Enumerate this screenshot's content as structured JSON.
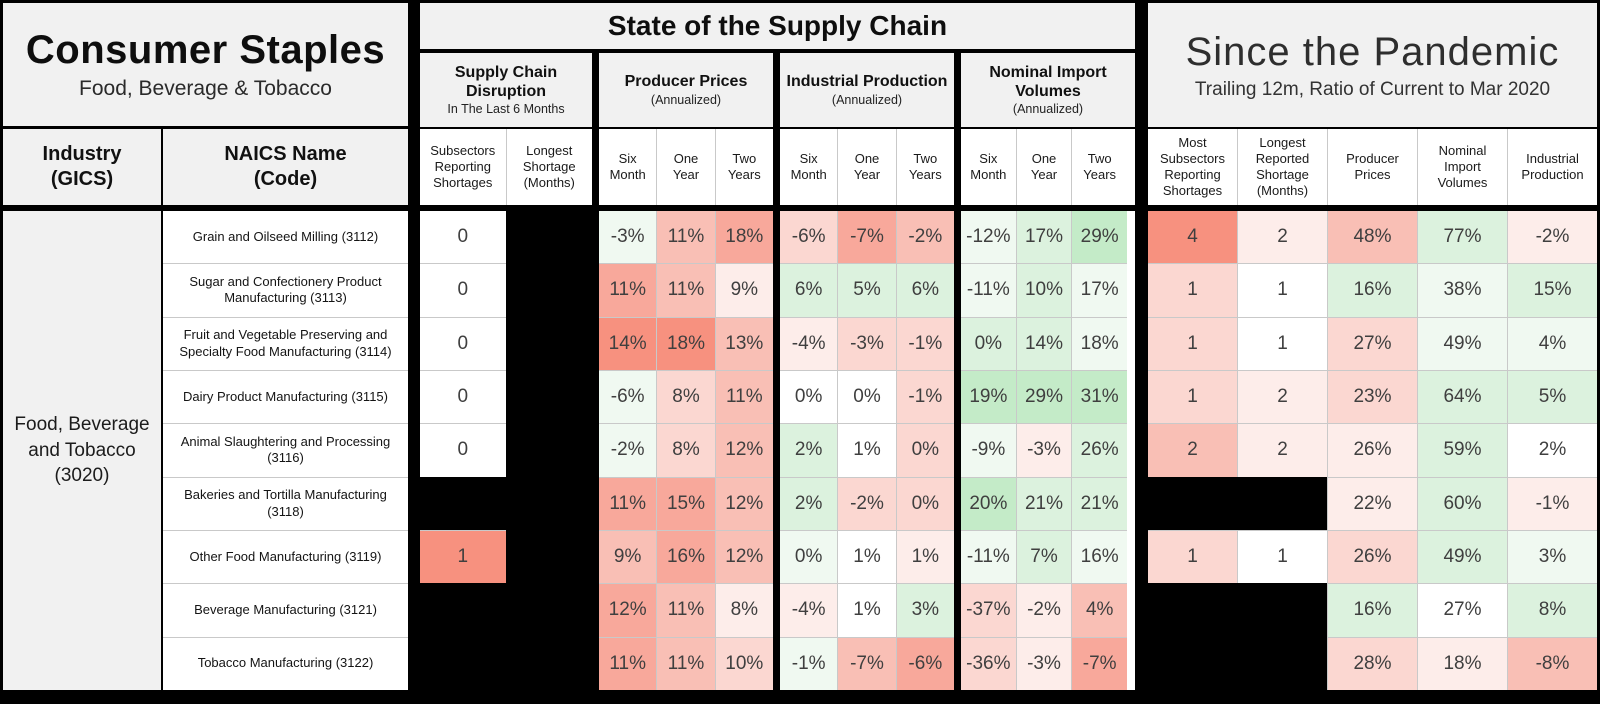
{
  "left": {
    "title": "Consumer Staples",
    "subtitle": "Food, Beverage & Tobacco",
    "industry_header": {
      "line1": "Industry",
      "line2": "(GICS)"
    },
    "naics_header": {
      "line1": "NAICS Name",
      "line2": "(Code)"
    }
  },
  "middle": {
    "banner": "State of the Supply Chain",
    "groups": [
      {
        "title": "Supply Chain Disruption",
        "subtitle": "In The Last 6 Months",
        "cols": [
          "Subsectors Reporting Shortages",
          "Longest Shortage (Months)"
        ]
      },
      {
        "title": "Producer Prices",
        "subtitle": "(Annualized)",
        "cols": [
          "Six Month",
          "One Year",
          "Two Years"
        ]
      },
      {
        "title": "Industrial Production",
        "subtitle": "(Annualized)",
        "cols": [
          "Six Month",
          "One Year",
          "Two Years"
        ]
      },
      {
        "title": "Nominal Import Volumes",
        "subtitle": "(Annualized)",
        "cols": [
          "Six Month",
          "One Year",
          "Two Years"
        ]
      }
    ]
  },
  "right": {
    "title": "Since the Pandemic",
    "subtitle": "Trailing 12m, Ratio of Current to Mar 2020",
    "cols": [
      "Most Subsectors Reporting Shortages",
      "Longest Reported Shortage (Months)",
      "Producer Prices",
      "Nominal Import Volumes",
      "Industrial Production"
    ]
  },
  "palette": {
    "R4": "#f7917f",
    "R3": "#f8a89b",
    "R2": "#f9bfb5",
    "R1": "#fbd7d1",
    "R0": "#fdedea",
    "W": "#ffffff",
    "G0": "#f0f9f1",
    "G1": "#dcf2de",
    "G2": "#c4ebc8"
  },
  "chart_data": {
    "type": "table",
    "title": "State of the Supply Chain / Since the Pandemic — Consumer Staples (Food, Beverage & Tobacco)",
    "row_group": "Food, Beverage and Tobacco (3020)",
    "column_groups": [
      "Supply Chain Disruption (last 6 months)",
      "Producer Prices (annualized: 6m/1y/2y)",
      "Industrial Production (annualized: 6m/1y/2y)",
      "Nominal Import Volumes (annualized: 6m/1y/2y)",
      "Since the Pandemic (most subsectors reporting shortages, longest reported shortage months, producer prices, nominal import volumes, industrial production)"
    ],
    "rows": [
      {
        "name": "Grain and Oilseed Milling (3112)",
        "srs": {
          "v": "0",
          "c": "W"
        },
        "ls": null,
        "pp": [
          {
            "v": "-3%",
            "c": "G0"
          },
          {
            "v": "11%",
            "c": "R2"
          },
          {
            "v": "18%",
            "c": "R3"
          }
        ],
        "ip": [
          {
            "v": "-6%",
            "c": "R1"
          },
          {
            "v": "-7%",
            "c": "R3"
          },
          {
            "v": "-2%",
            "c": "R2"
          }
        ],
        "niv": [
          {
            "v": "-12%",
            "c": "G0"
          },
          {
            "v": "17%",
            "c": "G1"
          },
          {
            "v": "29%",
            "c": "G2"
          }
        ],
        "pand": [
          {
            "v": "4",
            "c": "R4"
          },
          {
            "v": "2",
            "c": "R0"
          },
          {
            "v": "48%",
            "c": "R2"
          },
          {
            "v": "77%",
            "c": "G1"
          },
          {
            "v": "-2%",
            "c": "R0"
          }
        ]
      },
      {
        "name": "Sugar and Confectionery Product Manufacturing (3113)",
        "srs": {
          "v": "0",
          "c": "W"
        },
        "ls": null,
        "pp": [
          {
            "v": "11%",
            "c": "R3"
          },
          {
            "v": "11%",
            "c": "R2"
          },
          {
            "v": "9%",
            "c": "R0"
          }
        ],
        "ip": [
          {
            "v": "6%",
            "c": "G1"
          },
          {
            "v": "5%",
            "c": "G1"
          },
          {
            "v": "6%",
            "c": "G1"
          }
        ],
        "niv": [
          {
            "v": "-11%",
            "c": "G0"
          },
          {
            "v": "10%",
            "c": "G1"
          },
          {
            "v": "17%",
            "c": "G0"
          }
        ],
        "pand": [
          {
            "v": "1",
            "c": "R1"
          },
          {
            "v": "1",
            "c": "W"
          },
          {
            "v": "16%",
            "c": "G1"
          },
          {
            "v": "38%",
            "c": "G0"
          },
          {
            "v": "15%",
            "c": "G1"
          }
        ]
      },
      {
        "name": "Fruit and Vegetable Preserving and Specialty Food Manufacturing (3114)",
        "srs": {
          "v": "0",
          "c": "W"
        },
        "ls": null,
        "pp": [
          {
            "v": "14%",
            "c": "R4"
          },
          {
            "v": "18%",
            "c": "R4"
          },
          {
            "v": "13%",
            "c": "R2"
          }
        ],
        "ip": [
          {
            "v": "-4%",
            "c": "R0"
          },
          {
            "v": "-3%",
            "c": "R1"
          },
          {
            "v": "-1%",
            "c": "R1"
          }
        ],
        "niv": [
          {
            "v": "0%",
            "c": "G1"
          },
          {
            "v": "14%",
            "c": "G1"
          },
          {
            "v": "18%",
            "c": "G0"
          }
        ],
        "pand": [
          {
            "v": "1",
            "c": "R1"
          },
          {
            "v": "1",
            "c": "W"
          },
          {
            "v": "27%",
            "c": "R1"
          },
          {
            "v": "49%",
            "c": "G0"
          },
          {
            "v": "4%",
            "c": "G0"
          }
        ]
      },
      {
        "name": "Dairy Product Manufacturing (3115)",
        "srs": {
          "v": "0",
          "c": "W"
        },
        "ls": null,
        "pp": [
          {
            "v": "-6%",
            "c": "G0"
          },
          {
            "v": "8%",
            "c": "R1"
          },
          {
            "v": "11%",
            "c": "R2"
          }
        ],
        "ip": [
          {
            "v": "0%",
            "c": "W"
          },
          {
            "v": "0%",
            "c": "W"
          },
          {
            "v": "-1%",
            "c": "R1"
          }
        ],
        "niv": [
          {
            "v": "19%",
            "c": "G2"
          },
          {
            "v": "29%",
            "c": "G2"
          },
          {
            "v": "31%",
            "c": "G2"
          }
        ],
        "pand": [
          {
            "v": "1",
            "c": "R1"
          },
          {
            "v": "2",
            "c": "R0"
          },
          {
            "v": "23%",
            "c": "R1"
          },
          {
            "v": "64%",
            "c": "G1"
          },
          {
            "v": "5%",
            "c": "G1"
          }
        ]
      },
      {
        "name": "Animal Slaughtering and Processing (3116)",
        "srs": {
          "v": "0",
          "c": "W"
        },
        "ls": null,
        "pp": [
          {
            "v": "-2%",
            "c": "G0"
          },
          {
            "v": "8%",
            "c": "R1"
          },
          {
            "v": "12%",
            "c": "R2"
          }
        ],
        "ip": [
          {
            "v": "2%",
            "c": "G1"
          },
          {
            "v": "1%",
            "c": "W"
          },
          {
            "v": "0%",
            "c": "R1"
          }
        ],
        "niv": [
          {
            "v": "-9%",
            "c": "G0"
          },
          {
            "v": "-3%",
            "c": "R0"
          },
          {
            "v": "26%",
            "c": "G1"
          }
        ],
        "pand": [
          {
            "v": "2",
            "c": "R2"
          },
          {
            "v": "2",
            "c": "R0"
          },
          {
            "v": "26%",
            "c": "R0"
          },
          {
            "v": "59%",
            "c": "G1"
          },
          {
            "v": "2%",
            "c": "W"
          }
        ]
      },
      {
        "name": "Bakeries and Tortilla Manufacturing (3118)",
        "srs": null,
        "ls": null,
        "pp": [
          {
            "v": "11%",
            "c": "R3"
          },
          {
            "v": "15%",
            "c": "R3"
          },
          {
            "v": "12%",
            "c": "R2"
          }
        ],
        "ip": [
          {
            "v": "2%",
            "c": "G1"
          },
          {
            "v": "-2%",
            "c": "R1"
          },
          {
            "v": "0%",
            "c": "R1"
          }
        ],
        "niv": [
          {
            "v": "20%",
            "c": "G2"
          },
          {
            "v": "21%",
            "c": "G1"
          },
          {
            "v": "21%",
            "c": "G1"
          }
        ],
        "pand": [
          null,
          null,
          {
            "v": "22%",
            "c": "R0"
          },
          {
            "v": "60%",
            "c": "G1"
          },
          {
            "v": "-1%",
            "c": "R0"
          }
        ]
      },
      {
        "name": "Other Food Manufacturing (3119)",
        "srs": {
          "v": "1",
          "c": "R4"
        },
        "ls": null,
        "pp": [
          {
            "v": "9%",
            "c": "R2"
          },
          {
            "v": "16%",
            "c": "R3"
          },
          {
            "v": "12%",
            "c": "R2"
          }
        ],
        "ip": [
          {
            "v": "0%",
            "c": "G0"
          },
          {
            "v": "1%",
            "c": "W"
          },
          {
            "v": "1%",
            "c": "R0"
          }
        ],
        "niv": [
          {
            "v": "-11%",
            "c": "G0"
          },
          {
            "v": "7%",
            "c": "G1"
          },
          {
            "v": "16%",
            "c": "G0"
          }
        ],
        "pand": [
          {
            "v": "1",
            "c": "R1"
          },
          {
            "v": "1",
            "c": "W"
          },
          {
            "v": "26%",
            "c": "R1"
          },
          {
            "v": "49%",
            "c": "G1"
          },
          {
            "v": "3%",
            "c": "G0"
          }
        ]
      },
      {
        "name": "Beverage Manufacturing (3121)",
        "srs": null,
        "ls": null,
        "pp": [
          {
            "v": "12%",
            "c": "R3"
          },
          {
            "v": "11%",
            "c": "R2"
          },
          {
            "v": "8%",
            "c": "R0"
          }
        ],
        "ip": [
          {
            "v": "-4%",
            "c": "R0"
          },
          {
            "v": "1%",
            "c": "W"
          },
          {
            "v": "3%",
            "c": "G1"
          }
        ],
        "niv": [
          {
            "v": "-37%",
            "c": "R1"
          },
          {
            "v": "-2%",
            "c": "R0"
          },
          {
            "v": "4%",
            "c": "R2"
          }
        ],
        "pand": [
          null,
          null,
          {
            "v": "16%",
            "c": "G1"
          },
          {
            "v": "27%",
            "c": "W"
          },
          {
            "v": "8%",
            "c": "G1"
          }
        ]
      },
      {
        "name": "Tobacco Manufacturing (3122)",
        "srs": null,
        "ls": null,
        "pp": [
          {
            "v": "11%",
            "c": "R3"
          },
          {
            "v": "11%",
            "c": "R2"
          },
          {
            "v": "10%",
            "c": "R1"
          }
        ],
        "ip": [
          {
            "v": "-1%",
            "c": "G0"
          },
          {
            "v": "-7%",
            "c": "R2"
          },
          {
            "v": "-6%",
            "c": "R3"
          }
        ],
        "niv": [
          {
            "v": "-36%",
            "c": "R1"
          },
          {
            "v": "-3%",
            "c": "R0"
          },
          {
            "v": "-7%",
            "c": "R3"
          }
        ],
        "pand": [
          null,
          null,
          {
            "v": "28%",
            "c": "R1"
          },
          {
            "v": "18%",
            "c": "R0"
          },
          {
            "v": "-8%",
            "c": "R2"
          }
        ]
      }
    ]
  }
}
